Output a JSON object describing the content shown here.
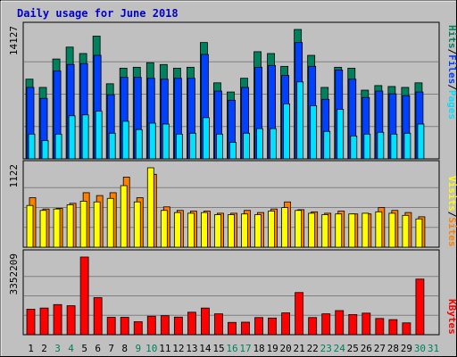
{
  "title": "Daily usage for June 2018",
  "colors": {
    "background": "#c0c0c0",
    "panel": "#c0c0c0",
    "title": "#0000cc",
    "hits": "#00805c",
    "files": "#0040ff",
    "pages": "#00e0ff",
    "visits": "#ffff00",
    "sites": "#ff8000",
    "kbytes": "#ff0000",
    "weekend_label": "#00805c",
    "weekday_label": "#000000"
  },
  "chart_data": [
    {
      "type": "bar",
      "panel": "hits-files-pages",
      "ymax_label": "14127",
      "ylim": [
        0,
        14127
      ],
      "right_labels": [
        "Pages",
        "Files",
        "Hits"
      ],
      "series": [
        {
          "name": "Hits",
          "values": [
            8700,
            7800,
            10900,
            12200,
            11500,
            13400,
            8200,
            9900,
            10000,
            10500,
            10300,
            9900,
            10000,
            12700,
            8300,
            7300,
            8800,
            11700,
            11500,
            10100,
            14127,
            11300,
            7800,
            10000,
            9900,
            7500,
            8000,
            7900,
            7800,
            8300
          ]
        },
        {
          "name": "Files",
          "values": [
            7800,
            6600,
            9600,
            10300,
            10400,
            11300,
            7000,
            8900,
            8900,
            8800,
            8700,
            8800,
            8800,
            11400,
            7400,
            6400,
            7800,
            10000,
            10200,
            9100,
            12700,
            10100,
            6500,
            9700,
            8700,
            6700,
            7400,
            7100,
            6900,
            7300
          ]
        },
        {
          "name": "Pages",
          "values": [
            2700,
            2000,
            2700,
            4700,
            4800,
            5200,
            2800,
            4100,
            3200,
            3900,
            3800,
            2700,
            2800,
            4500,
            2700,
            1800,
            2800,
            3300,
            3300,
            6000,
            8400,
            5800,
            3000,
            5400,
            2500,
            2700,
            2900,
            2700,
            2800,
            3800
          ]
        }
      ]
    },
    {
      "type": "bar",
      "panel": "visits-sites",
      "ymax_label": "1122",
      "ylim": [
        0,
        1122
      ],
      "right_labels": [
        "Sites",
        "Visits"
      ],
      "series": [
        {
          "name": "Visits",
          "values": [
            590,
            520,
            540,
            600,
            650,
            640,
            690,
            870,
            640,
            1122,
            520,
            490,
            480,
            490,
            460,
            460,
            470,
            460,
            510,
            560,
            520,
            480,
            460,
            470,
            470,
            480,
            500,
            480,
            450,
            400
          ]
        },
        {
          "name": "Sites",
          "values": [
            700,
            540,
            550,
            620,
            770,
            730,
            770,
            990,
            700,
            1030,
            570,
            520,
            510,
            510,
            480,
            480,
            520,
            490,
            540,
            640,
            530,
            500,
            480,
            510,
            470,
            470,
            560,
            520,
            490,
            430
          ]
        }
      ]
    },
    {
      "type": "bar",
      "panel": "kbytes",
      "ymax_label": "3352209",
      "ylim": [
        0,
        3352209
      ],
      "right_labels": [
        "KBytes"
      ],
      "series": [
        {
          "name": "KBytes",
          "values": [
            1100000,
            1150000,
            1300000,
            1250000,
            3352209,
            1600000,
            750000,
            750000,
            560000,
            800000,
            820000,
            760000,
            970000,
            1150000,
            900000,
            530000,
            540000,
            740000,
            720000,
            940000,
            1820000,
            740000,
            900000,
            1040000,
            870000,
            930000,
            700000,
            650000,
            510000,
            2400000
          ]
        }
      ]
    }
  ],
  "x_labels": [
    "1",
    "2",
    "3",
    "4",
    "5",
    "6",
    "7",
    "8",
    "9",
    "10",
    "11",
    "12",
    "13",
    "14",
    "15",
    "16",
    "17",
    "18",
    "19",
    "20",
    "21",
    "22",
    "23",
    "24",
    "25",
    "26",
    "27",
    "28",
    "29",
    "30",
    "31"
  ],
  "weekend_days": [
    3,
    4,
    9,
    10,
    16,
    17,
    23,
    24,
    30,
    31
  ]
}
